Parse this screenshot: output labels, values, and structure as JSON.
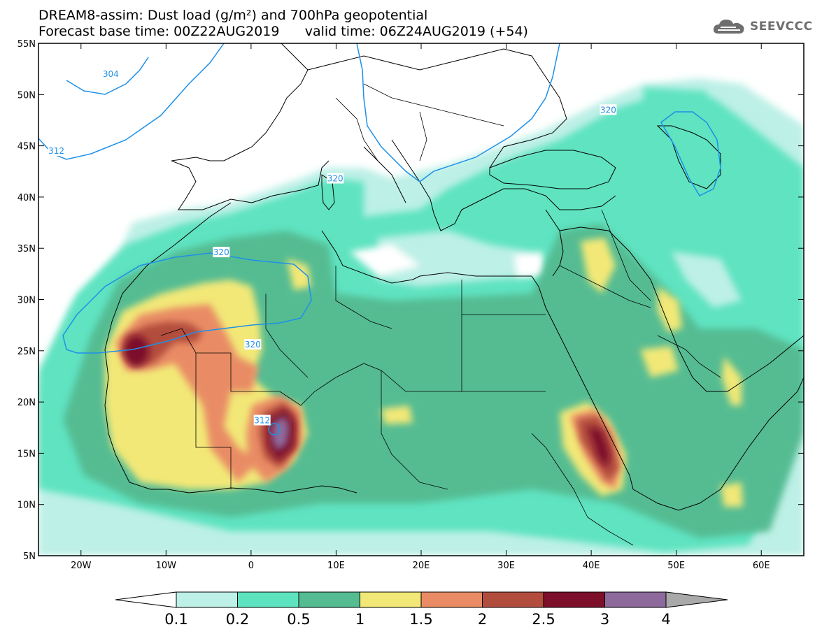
{
  "title_line1": "DREAM8-assim: Dust load (g/m²) and 700hPa geopotential",
  "title_line2": "Forecast base time: 00Z22AUG2019      valid time: 06Z24AUG2019 (+54)",
  "logo": {
    "text": "SEEVCCC",
    "icon": "cloud-icon"
  },
  "map": {
    "lon_range": [
      -25,
      65
    ],
    "lat_range": [
      5,
      55
    ],
    "lon_ticks": [
      {
        "value": -20,
        "label": "20W"
      },
      {
        "value": -10,
        "label": "10W"
      },
      {
        "value": 0,
        "label": "0"
      },
      {
        "value": 10,
        "label": "10E"
      },
      {
        "value": 20,
        "label": "20E"
      },
      {
        "value": 30,
        "label": "30E"
      },
      {
        "value": 40,
        "label": "40E"
      },
      {
        "value": 50,
        "label": "50E"
      },
      {
        "value": 60,
        "label": "60E"
      }
    ],
    "lat_ticks": [
      {
        "value": 55,
        "label": "55N"
      },
      {
        "value": 50,
        "label": "50N"
      },
      {
        "value": 45,
        "label": "45N"
      },
      {
        "value": 40,
        "label": "40N"
      },
      {
        "value": 35,
        "label": "35N"
      },
      {
        "value": 30,
        "label": "30N"
      },
      {
        "value": 25,
        "label": "25N"
      },
      {
        "value": 20,
        "label": "20N"
      },
      {
        "value": 15,
        "label": "15N"
      },
      {
        "value": 10,
        "label": "10N"
      },
      {
        "value": 5,
        "label": "5N"
      }
    ],
    "contour_labels": [
      {
        "text": "304",
        "lon": -16.5,
        "lat": 52.0
      },
      {
        "text": "312",
        "lon": -22.9,
        "lat": 44.5
      },
      {
        "text": "320",
        "lon": 9.9,
        "lat": 41.8
      },
      {
        "text": "320",
        "lon": 42.0,
        "lat": 48.5
      },
      {
        "text": "320",
        "lon": -3.5,
        "lat": 34.6
      },
      {
        "text": "320",
        "lon": 0.2,
        "lat": 25.6
      },
      {
        "text": "312",
        "lon": 1.3,
        "lat": 18.2
      }
    ]
  },
  "colorbar": {
    "labels": [
      "0.1",
      "0.2",
      "0.5",
      "1",
      "1.5",
      "2",
      "2.5",
      "3",
      "4"
    ],
    "colors": [
      "#ffffff",
      "#bdf0e6",
      "#5ee3c1",
      "#55bc92",
      "#f2e877",
      "#e98c65",
      "#b24d3d",
      "#7d0f2a",
      "#8d6a9b",
      "#a9a9a9"
    ]
  },
  "colors": {
    "contour": "#1e90e8",
    "coast": "#000000"
  }
}
